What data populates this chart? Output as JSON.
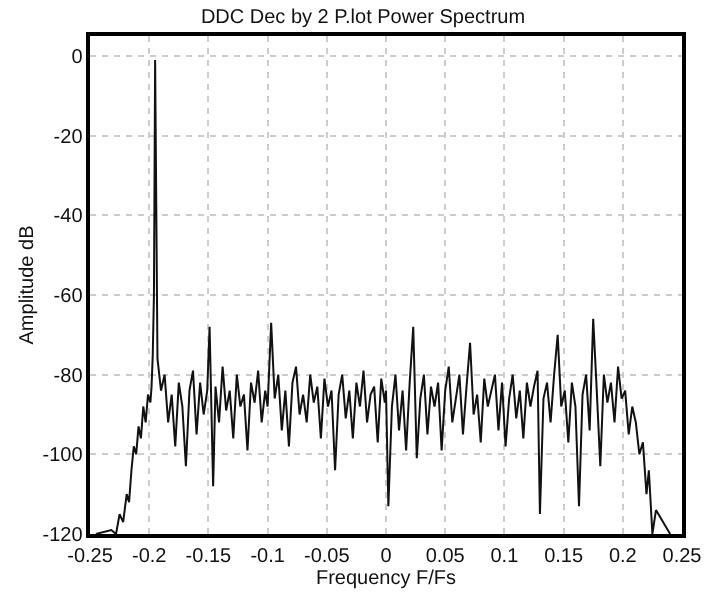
{
  "chart_data": {
    "type": "line",
    "title": "DDC Dec by 2 P.lot Power Spectrum",
    "xlabel": "Frequency F/Fs",
    "ylabel": "Amplitude dB",
    "series": [
      {
        "color": "#111111",
        "x": [
          -0.245,
          -0.232,
          -0.228,
          -0.225,
          -0.222,
          -0.219,
          -0.217,
          -0.215,
          -0.213,
          -0.211,
          -0.209,
          -0.207,
          -0.205,
          -0.203,
          -0.201,
          -0.199,
          -0.198,
          -0.197,
          -0.196,
          -0.195,
          -0.193,
          -0.19,
          -0.187,
          -0.184,
          -0.181,
          -0.178,
          -0.175,
          -0.172,
          -0.169,
          -0.166,
          -0.163,
          -0.16,
          -0.157,
          -0.154,
          -0.151,
          -0.149,
          -0.146,
          -0.144,
          -0.141,
          -0.138,
          -0.135,
          -0.132,
          -0.129,
          -0.126,
          -0.123,
          -0.12,
          -0.117,
          -0.114,
          -0.111,
          -0.108,
          -0.105,
          -0.102,
          -0.1,
          -0.097,
          -0.094,
          -0.091,
          -0.088,
          -0.085,
          -0.082,
          -0.079,
          -0.076,
          -0.073,
          -0.07,
          -0.067,
          -0.064,
          -0.061,
          -0.058,
          -0.055,
          -0.052,
          -0.049,
          -0.046,
          -0.043,
          -0.04,
          -0.037,
          -0.034,
          -0.031,
          -0.028,
          -0.025,
          -0.022,
          -0.019,
          -0.016,
          -0.013,
          -0.01,
          -0.007,
          -0.004,
          -0.001,
          0.0,
          0.002,
          0.005,
          0.008,
          0.011,
          0.014,
          0.017,
          0.02,
          0.023,
          0.026,
          0.029,
          0.032,
          0.035,
          0.038,
          0.041,
          0.044,
          0.047,
          0.05,
          0.053,
          0.056,
          0.059,
          0.062,
          0.065,
          0.068,
          0.071,
          0.074,
          0.077,
          0.08,
          0.083,
          0.086,
          0.089,
          0.092,
          0.095,
          0.098,
          0.101,
          0.104,
          0.107,
          0.11,
          0.113,
          0.116,
          0.119,
          0.122,
          0.125,
          0.128,
          0.13,
          0.133,
          0.136,
          0.139,
          0.142,
          0.145,
          0.148,
          0.151,
          0.154,
          0.157,
          0.16,
          0.163,
          0.166,
          0.169,
          0.172,
          0.175,
          0.178,
          0.181,
          0.184,
          0.187,
          0.19,
          0.193,
          0.196,
          0.199,
          0.202,
          0.205,
          0.208,
          0.211,
          0.214,
          0.217,
          0.22,
          0.222,
          0.225,
          0.228,
          0.236,
          0.24
        ],
        "values": [
          -120,
          -119,
          -120,
          -115,
          -117,
          -110,
          -112,
          -104,
          -98,
          -100,
          -93,
          -96,
          -88,
          -92,
          -85,
          -87,
          -83,
          -75,
          -60,
          -1,
          -76,
          -84,
          -80,
          -92,
          -85,
          -98,
          -82,
          -88,
          -103,
          -84,
          -79,
          -95,
          -82,
          -90,
          -84,
          -68,
          -108,
          -83,
          -92,
          -78,
          -89,
          -84,
          -96,
          -80,
          -88,
          -85,
          -99,
          -82,
          -87,
          -79,
          -92,
          -84,
          -88,
          -67,
          -86,
          -80,
          -94,
          -84,
          -98,
          -82,
          -78,
          -90,
          -85,
          -92,
          -80,
          -87,
          -83,
          -96,
          -81,
          -88,
          -84,
          -104,
          -85,
          -80,
          -91,
          -84,
          -96,
          -82,
          -88,
          -79,
          -92,
          -85,
          -83,
          -97,
          -81,
          -87,
          -84,
          -113,
          -88,
          -80,
          -94,
          -84,
          -99,
          -82,
          -68,
          -101,
          -86,
          -80,
          -95,
          -83,
          -88,
          -82,
          -99,
          -84,
          -78,
          -92,
          -86,
          -80,
          -95,
          -83,
          -72,
          -90,
          -85,
          -97,
          -81,
          -88,
          -84,
          -80,
          -94,
          -82,
          -98,
          -86,
          -80,
          -91,
          -84,
          -96,
          -82,
          -88,
          -83,
          -79,
          -115,
          -86,
          -82,
          -92,
          -80,
          -70,
          -88,
          -84,
          -97,
          -82,
          -88,
          -113,
          -85,
          -80,
          -94,
          -66,
          -84,
          -103,
          -80,
          -87,
          -82,
          -92,
          -78,
          -86,
          -84,
          -95,
          -88,
          -92,
          -100,
          -97,
          -110,
          -104,
          -120,
          -114,
          -118,
          -120
        ]
      }
    ],
    "xlim": [
      -0.25,
      0.25
    ],
    "ylim": [
      -120,
      5
    ],
    "xticks": [
      -0.25,
      -0.2,
      -0.15,
      -0.1,
      -0.05,
      0,
      0.05,
      0.1,
      0.15,
      0.2,
      0.25
    ],
    "yticks": [
      -120,
      -100,
      -80,
      -60,
      -40,
      -20,
      0
    ],
    "grid": true,
    "line_style": "solid",
    "legend": false
  }
}
